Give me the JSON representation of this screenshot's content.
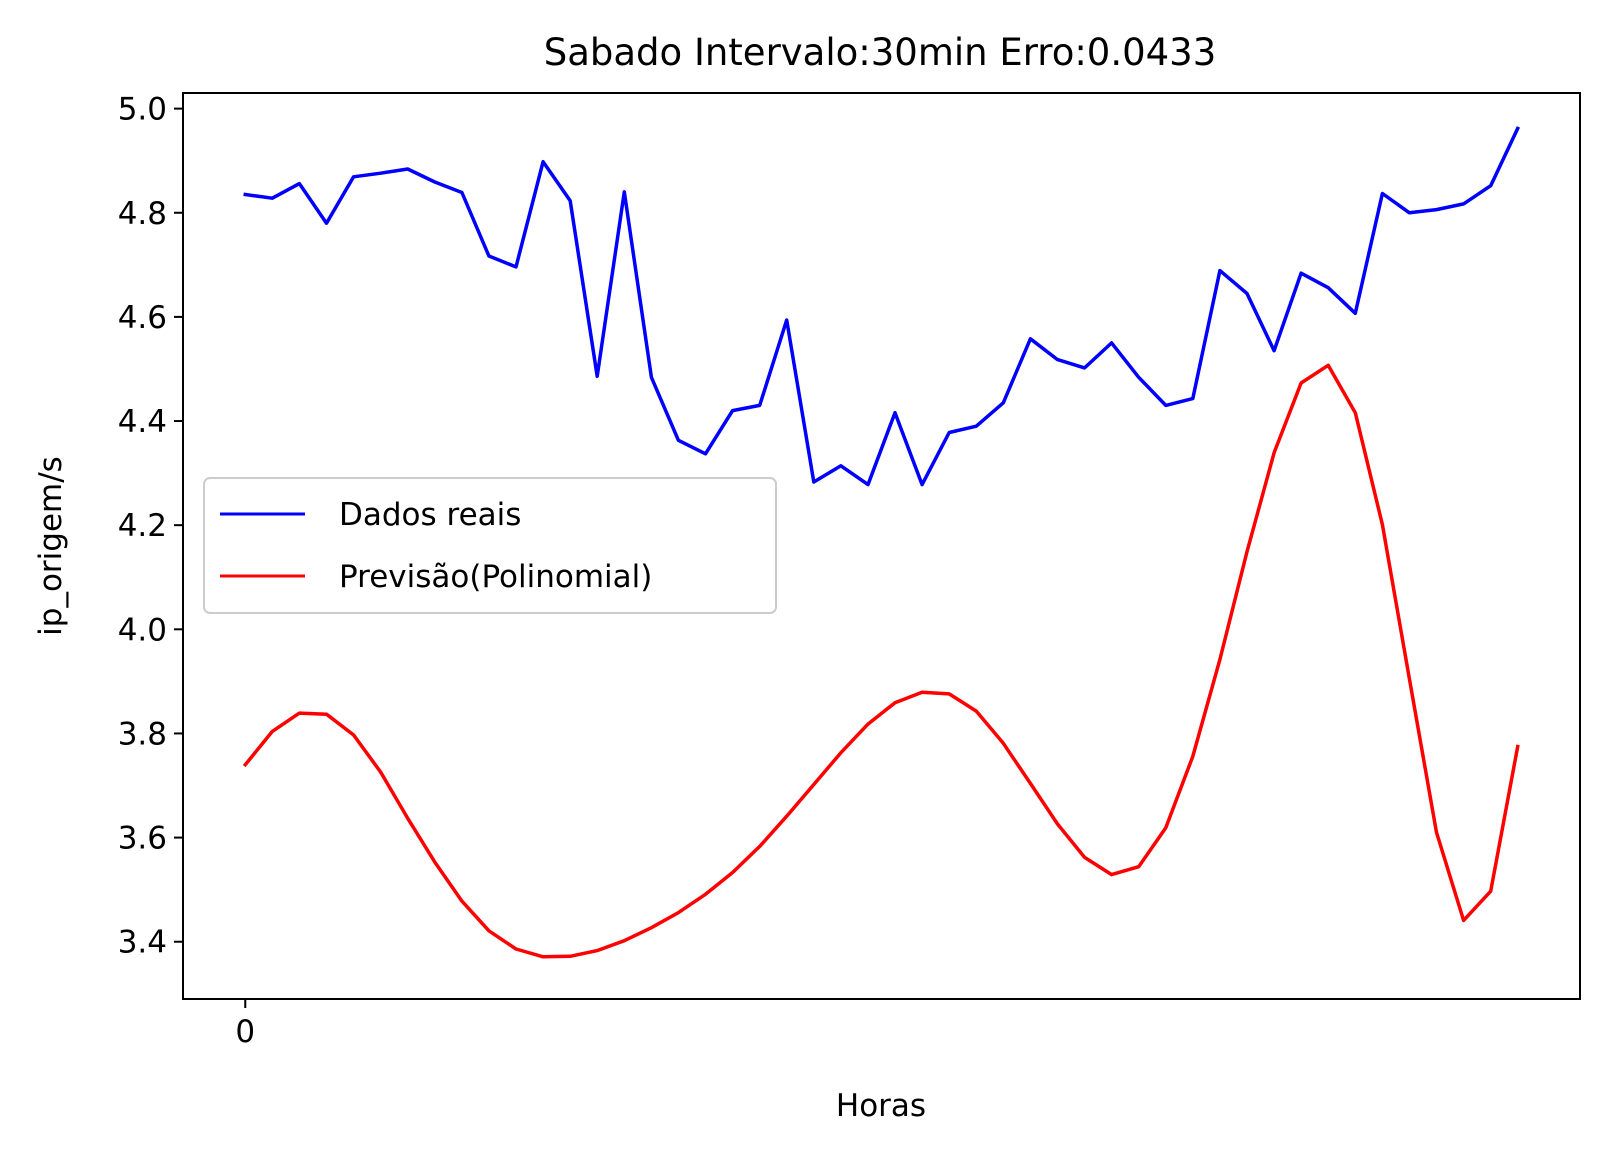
{
  "chart_data": {
    "type": "line",
    "title": "Sabado Intervalo:30min Erro:0.0433",
    "xlabel": "Horas",
    "ylabel": "ip_origem/s",
    "x": [
      0,
      1,
      2,
      3,
      4,
      5,
      6,
      7,
      8,
      9,
      10,
      11,
      12,
      13,
      14,
      15,
      16,
      17,
      18,
      19,
      20,
      21,
      22,
      23,
      24,
      25,
      26,
      27,
      28,
      29,
      30,
      31,
      32,
      33,
      34,
      35,
      36,
      37,
      38,
      39,
      40,
      41,
      42,
      43,
      44,
      45,
      46,
      47
    ],
    "xticks": [
      0
    ],
    "xlim": [
      -2.3,
      49.3
    ],
    "yticks": [
      3.4,
      3.6,
      3.8,
      4.0,
      4.2,
      4.4,
      4.6,
      4.8,
      5.0
    ],
    "ytick_labels": [
      "3.4",
      "3.6",
      "3.8",
      "4.0",
      "4.2",
      "4.4",
      "4.6",
      "4.8",
      "5.0"
    ],
    "ylim": [
      3.29,
      5.03
    ],
    "grid": false,
    "legend_position": "center-left",
    "series": [
      {
        "name": "Dados reais",
        "color": "#0000ff",
        "values": [
          4.835,
          4.828,
          4.856,
          4.78,
          4.869,
          4.876,
          4.884,
          4.859,
          4.839,
          4.717,
          4.696,
          4.898,
          4.823,
          4.486,
          4.84,
          4.484,
          4.363,
          4.337,
          4.42,
          4.43,
          4.594,
          4.283,
          4.314,
          4.278,
          4.416,
          4.278,
          4.378,
          4.39,
          4.435,
          4.558,
          4.518,
          4.502,
          4.55,
          4.484,
          4.43,
          4.443,
          4.689,
          4.645,
          4.535,
          4.684,
          4.656,
          4.607,
          4.837,
          4.8,
          4.806,
          4.817,
          4.852,
          4.962
        ]
      },
      {
        "name": "Previsão(Polinomial)",
        "color": "#ff0000",
        "values": [
          3.74,
          3.804,
          3.839,
          3.837,
          3.797,
          3.726,
          3.637,
          3.553,
          3.478,
          3.421,
          3.386,
          3.371,
          3.372,
          3.383,
          3.402,
          3.427,
          3.456,
          3.491,
          3.533,
          3.583,
          3.641,
          3.702,
          3.763,
          3.818,
          3.859,
          3.879,
          3.876,
          3.843,
          3.781,
          3.704,
          3.626,
          3.562,
          3.529,
          3.544,
          3.619,
          3.756,
          3.942,
          4.149,
          4.339,
          4.473,
          4.507,
          4.416,
          4.201,
          3.905,
          3.61,
          3.441,
          3.497,
          3.775
        ]
      }
    ]
  }
}
